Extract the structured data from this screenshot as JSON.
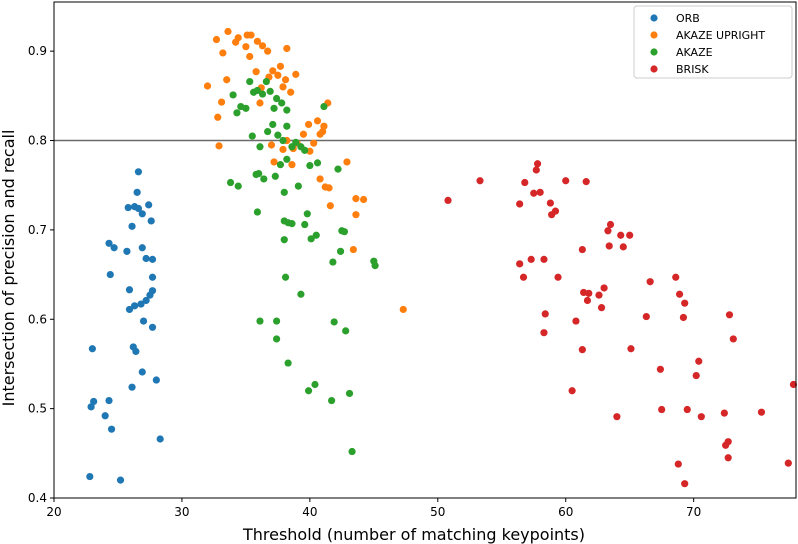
{
  "chart_data": {
    "type": "scatter",
    "xlabel": "Threshold (number of matching keypoints)",
    "ylabel": "Intersection of precision and recall",
    "xlim": [
      20,
      78
    ],
    "ylim": [
      0.4,
      0.955
    ],
    "xticks": [
      "20",
      "30",
      "40",
      "50",
      "60",
      "70"
    ],
    "yticks": [
      "0.4",
      "0.5",
      "0.6",
      "0.7",
      "0.8",
      "0.9"
    ],
    "hline": 0.8,
    "hline_color": "#6a6a6a",
    "grid": false,
    "legend_position": "top-right",
    "series": [
      {
        "name": "ORB",
        "color": "#1f77b4",
        "points": [
          [
            23.0,
            0.567
          ],
          [
            22.9,
            0.502
          ],
          [
            23.1,
            0.508
          ],
          [
            22.8,
            0.424
          ],
          [
            24.0,
            0.492
          ],
          [
            24.3,
            0.509
          ],
          [
            24.5,
            0.477
          ],
          [
            25.2,
            0.42
          ],
          [
            24.3,
            0.685
          ],
          [
            24.7,
            0.68
          ],
          [
            24.4,
            0.65
          ],
          [
            25.7,
            0.676
          ],
          [
            25.8,
            0.725
          ],
          [
            26.3,
            0.726
          ],
          [
            26.6,
            0.765
          ],
          [
            26.5,
            0.742
          ],
          [
            26.6,
            0.724
          ],
          [
            26.9,
            0.718
          ],
          [
            27.4,
            0.728
          ],
          [
            27.6,
            0.71
          ],
          [
            26.1,
            0.704
          ],
          [
            26.9,
            0.68
          ],
          [
            27.2,
            0.668
          ],
          [
            27.7,
            0.667
          ],
          [
            27.7,
            0.647
          ],
          [
            25.9,
            0.633
          ],
          [
            25.9,
            0.611
          ],
          [
            26.3,
            0.615
          ],
          [
            26.8,
            0.617
          ],
          [
            27.2,
            0.621
          ],
          [
            27.5,
            0.627
          ],
          [
            27.7,
            0.632
          ],
          [
            26.2,
            0.569
          ],
          [
            26.4,
            0.564
          ],
          [
            27.0,
            0.598
          ],
          [
            27.7,
            0.591
          ],
          [
            26.9,
            0.541
          ],
          [
            26.1,
            0.524
          ],
          [
            28.0,
            0.532
          ],
          [
            28.3,
            0.466
          ]
        ]
      },
      {
        "name": "AKAZE UPRIGHT",
        "color": "#ff7f0e",
        "points": [
          [
            32.0,
            0.861
          ],
          [
            32.7,
            0.913
          ],
          [
            33.2,
            0.898
          ],
          [
            33.6,
            0.922
          ],
          [
            34.2,
            0.91
          ],
          [
            34.4,
            0.915
          ],
          [
            35.1,
            0.918
          ],
          [
            35.4,
            0.918
          ],
          [
            35.0,
            0.905
          ],
          [
            35.3,
            0.894
          ],
          [
            35.9,
            0.911
          ],
          [
            36.3,
            0.906
          ],
          [
            36.7,
            0.9
          ],
          [
            35.8,
            0.877
          ],
          [
            36.2,
            0.859
          ],
          [
            36.8,
            0.871
          ],
          [
            37.1,
            0.878
          ],
          [
            37.5,
            0.873
          ],
          [
            37.7,
            0.883
          ],
          [
            38.2,
            0.903
          ],
          [
            37.9,
            0.86
          ],
          [
            38.1,
            0.868
          ],
          [
            38.5,
            0.854
          ],
          [
            38.9,
            0.874
          ],
          [
            32.8,
            0.826
          ],
          [
            33.1,
            0.843
          ],
          [
            33.5,
            0.868
          ],
          [
            36.1,
            0.842
          ],
          [
            37.0,
            0.795
          ],
          [
            37.2,
            0.776
          ],
          [
            37.9,
            0.79
          ],
          [
            38.2,
            0.8
          ],
          [
            38.7,
            0.791
          ],
          [
            39.5,
            0.807
          ],
          [
            39.9,
            0.818
          ],
          [
            40.6,
            0.822
          ],
          [
            41.1,
            0.816
          ],
          [
            41.4,
            0.842
          ],
          [
            40.8,
            0.807
          ],
          [
            41.0,
            0.81
          ],
          [
            40.3,
            0.797
          ],
          [
            40.0,
            0.788
          ],
          [
            39.0,
            0.797
          ],
          [
            38.6,
            0.773
          ],
          [
            32.9,
            0.794
          ],
          [
            40.8,
            0.757
          ],
          [
            41.2,
            0.748
          ],
          [
            41.5,
            0.747
          ],
          [
            41.6,
            0.727
          ],
          [
            42.9,
            0.776
          ],
          [
            43.6,
            0.735
          ],
          [
            44.2,
            0.734
          ],
          [
            43.6,
            0.717
          ],
          [
            43.4,
            0.678
          ],
          [
            47.3,
            0.611
          ]
        ]
      },
      {
        "name": "AKAZE",
        "color": "#2ca02c",
        "points": [
          [
            34.0,
            0.851
          ],
          [
            34.3,
            0.831
          ],
          [
            34.6,
            0.838
          ],
          [
            35.0,
            0.836
          ],
          [
            35.3,
            0.866
          ],
          [
            35.6,
            0.854
          ],
          [
            35.9,
            0.856
          ],
          [
            36.3,
            0.852
          ],
          [
            36.6,
            0.866
          ],
          [
            36.9,
            0.855
          ],
          [
            37.2,
            0.836
          ],
          [
            37.4,
            0.847
          ],
          [
            37.8,
            0.842
          ],
          [
            38.2,
            0.834
          ],
          [
            35.5,
            0.805
          ],
          [
            36.1,
            0.793
          ],
          [
            36.7,
            0.81
          ],
          [
            37.1,
            0.818
          ],
          [
            37.5,
            0.806
          ],
          [
            37.9,
            0.8
          ],
          [
            38.2,
            0.816
          ],
          [
            38.6,
            0.793
          ],
          [
            38.9,
            0.798
          ],
          [
            39.3,
            0.793
          ],
          [
            39.6,
            0.789
          ],
          [
            38.2,
            0.779
          ],
          [
            37.7,
            0.773
          ],
          [
            36.0,
            0.763
          ],
          [
            35.8,
            0.762
          ],
          [
            36.4,
            0.757
          ],
          [
            33.8,
            0.753
          ],
          [
            34.4,
            0.749
          ],
          [
            37.3,
            0.76
          ],
          [
            38.0,
            0.742
          ],
          [
            39.1,
            0.749
          ],
          [
            40.0,
            0.772
          ],
          [
            40.6,
            0.775
          ],
          [
            41.1,
            0.838
          ],
          [
            42.2,
            0.768
          ],
          [
            35.9,
            0.72
          ],
          [
            38.0,
            0.71
          ],
          [
            38.3,
            0.708
          ],
          [
            38.6,
            0.707
          ],
          [
            38.0,
            0.689
          ],
          [
            39.8,
            0.718
          ],
          [
            39.6,
            0.706
          ],
          [
            40.1,
            0.69
          ],
          [
            40.5,
            0.694
          ],
          [
            42.5,
            0.699
          ],
          [
            42.7,
            0.698
          ],
          [
            42.4,
            0.676
          ],
          [
            41.8,
            0.664
          ],
          [
            45.0,
            0.665
          ],
          [
            45.1,
            0.66
          ],
          [
            38.1,
            0.647
          ],
          [
            39.3,
            0.628
          ],
          [
            36.1,
            0.598
          ],
          [
            37.4,
            0.598
          ],
          [
            41.9,
            0.597
          ],
          [
            42.8,
            0.587
          ],
          [
            37.4,
            0.578
          ],
          [
            38.3,
            0.551
          ],
          [
            40.4,
            0.527
          ],
          [
            39.9,
            0.52
          ],
          [
            41.7,
            0.509
          ],
          [
            43.1,
            0.517
          ],
          [
            43.3,
            0.452
          ]
        ]
      },
      {
        "name": "BRISK",
        "color": "#d62728",
        "points": [
          [
            50.8,
            0.733
          ],
          [
            53.3,
            0.755
          ],
          [
            56.8,
            0.753
          ],
          [
            57.7,
            0.767
          ],
          [
            57.8,
            0.774
          ],
          [
            57.5,
            0.741
          ],
          [
            58.0,
            0.742
          ],
          [
            58.8,
            0.73
          ],
          [
            59.2,
            0.721
          ],
          [
            58.9,
            0.717
          ],
          [
            60.0,
            0.755
          ],
          [
            61.6,
            0.754
          ],
          [
            56.4,
            0.729
          ],
          [
            56.4,
            0.662
          ],
          [
            56.7,
            0.647
          ],
          [
            57.3,
            0.667
          ],
          [
            58.3,
            0.667
          ],
          [
            59.4,
            0.647
          ],
          [
            58.4,
            0.606
          ],
          [
            58.3,
            0.585
          ],
          [
            61.3,
            0.678
          ],
          [
            63.3,
            0.699
          ],
          [
            63.5,
            0.706
          ],
          [
            63.4,
            0.682
          ],
          [
            64.5,
            0.681
          ],
          [
            65.0,
            0.694
          ],
          [
            64.3,
            0.694
          ],
          [
            63.0,
            0.635
          ],
          [
            61.4,
            0.63
          ],
          [
            61.8,
            0.629
          ],
          [
            62.6,
            0.627
          ],
          [
            61.7,
            0.621
          ],
          [
            62.8,
            0.613
          ],
          [
            60.8,
            0.598
          ],
          [
            61.3,
            0.566
          ],
          [
            60.5,
            0.52
          ],
          [
            64.0,
            0.491
          ],
          [
            66.3,
            0.603
          ],
          [
            66.6,
            0.642
          ],
          [
            68.6,
            0.647
          ],
          [
            68.9,
            0.628
          ],
          [
            69.3,
            0.618
          ],
          [
            69.2,
            0.602
          ],
          [
            67.4,
            0.544
          ],
          [
            65.1,
            0.567
          ],
          [
            67.5,
            0.499
          ],
          [
            69.5,
            0.499
          ],
          [
            70.4,
            0.553
          ],
          [
            70.2,
            0.537
          ],
          [
            70.6,
            0.491
          ],
          [
            72.8,
            0.605
          ],
          [
            73.1,
            0.578
          ],
          [
            72.4,
            0.495
          ],
          [
            72.5,
            0.459
          ],
          [
            72.7,
            0.463
          ],
          [
            72.7,
            0.445
          ],
          [
            75.3,
            0.496
          ],
          [
            68.8,
            0.438
          ],
          [
            69.3,
            0.416
          ],
          [
            77.4,
            0.439
          ],
          [
            77.8,
            0.527
          ]
        ]
      }
    ]
  }
}
